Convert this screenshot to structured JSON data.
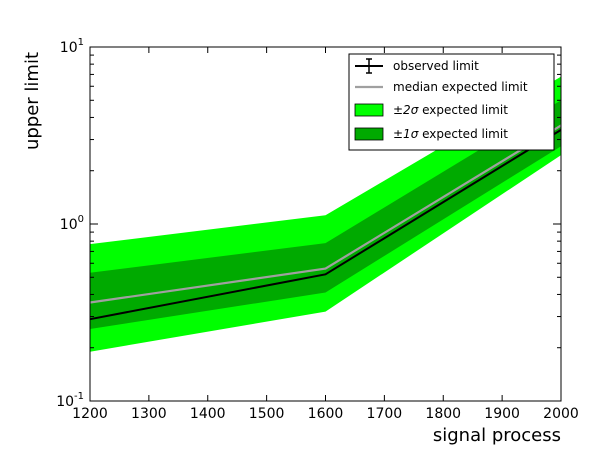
{
  "chart_data": {
    "type": "area",
    "xlabel": "signal process",
    "ylabel": "upper limit",
    "xlim": [
      1200,
      2000
    ],
    "ylim": [
      0.1,
      10
    ],
    "y_scale": "log",
    "x_ticks": [
      1200,
      1300,
      1400,
      1500,
      1600,
      1700,
      1800,
      1900,
      2000
    ],
    "y_ticks": [
      {
        "base": "10",
        "exp": "-1",
        "value": 0.1
      },
      {
        "base": "10",
        "exp": "0",
        "value": 1
      },
      {
        "base": "10",
        "exp": "1",
        "value": 10
      }
    ],
    "x": [
      1200,
      1600,
      2000
    ],
    "series": [
      {
        "name": "observed limit",
        "kind": "line",
        "color": "#000000",
        "values": [
          0.29,
          0.52,
          3.4
        ]
      },
      {
        "name": "median expected limit",
        "kind": "line",
        "color": "#a0a0a0",
        "values": [
          0.36,
          0.56,
          3.6
        ]
      },
      {
        "name": "expected limit",
        "legend_prefix": "±2σ",
        "kind": "band",
        "color": "#00ff00",
        "low": [
          0.19,
          0.32,
          2.45
        ],
        "high": [
          0.77,
          1.12,
          6.8
        ]
      },
      {
        "name": "expected limit",
        "legend_prefix": "±1σ",
        "kind": "band",
        "color": "#00aa00",
        "low": [
          0.255,
          0.41,
          2.75
        ],
        "high": [
          0.53,
          0.78,
          5.0
        ]
      }
    ],
    "legend_position": "top-right",
    "grid": false
  }
}
